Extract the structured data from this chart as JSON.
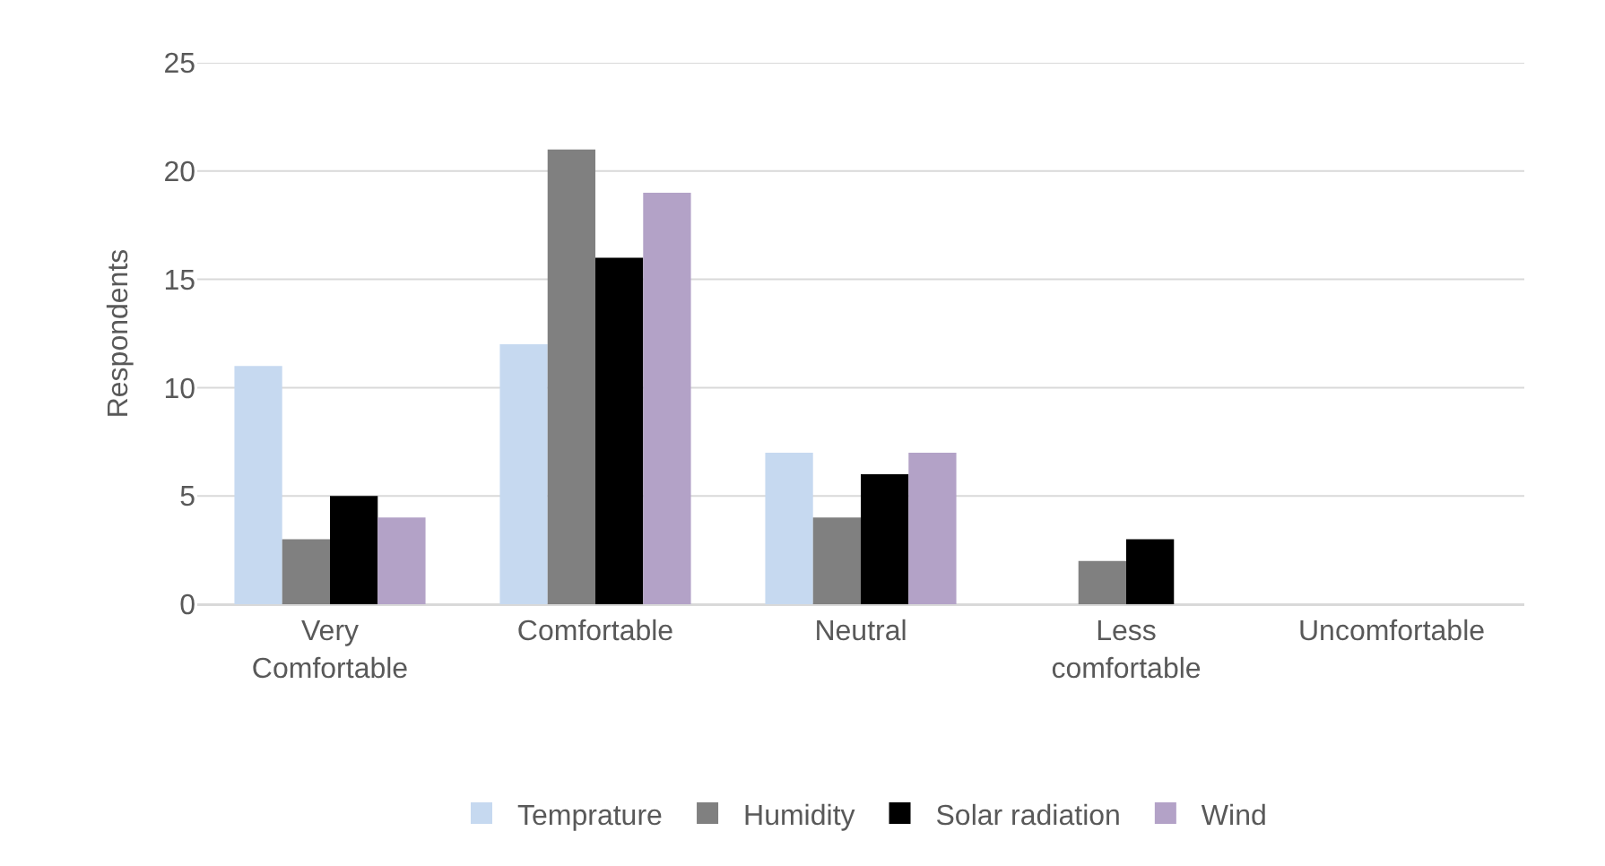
{
  "chart_data": {
    "type": "bar",
    "ylabel": "Respondents",
    "categories": [
      "Very\nComfortable",
      "Comfortable",
      "Neutral",
      "Less\ncomfortable",
      "Uncomfortable"
    ],
    "series": [
      {
        "name": "Temprature",
        "color": "#c6d9f0",
        "values": [
          11,
          12,
          7,
          0,
          0
        ]
      },
      {
        "name": "Humidity",
        "color": "#808080",
        "values": [
          3,
          21,
          4,
          2,
          0
        ]
      },
      {
        "name": "Solar radiation",
        "color": "#000000",
        "values": [
          5,
          16,
          6,
          3,
          0
        ]
      },
      {
        "name": "Wind",
        "color": "#b3a2c7",
        "values": [
          4,
          19,
          7,
          0,
          0
        ]
      }
    ],
    "ylim": [
      0,
      25
    ],
    "yticks": [
      0,
      5,
      10,
      15,
      20,
      25
    ],
    "grid": "y",
    "legend": "bottom"
  }
}
